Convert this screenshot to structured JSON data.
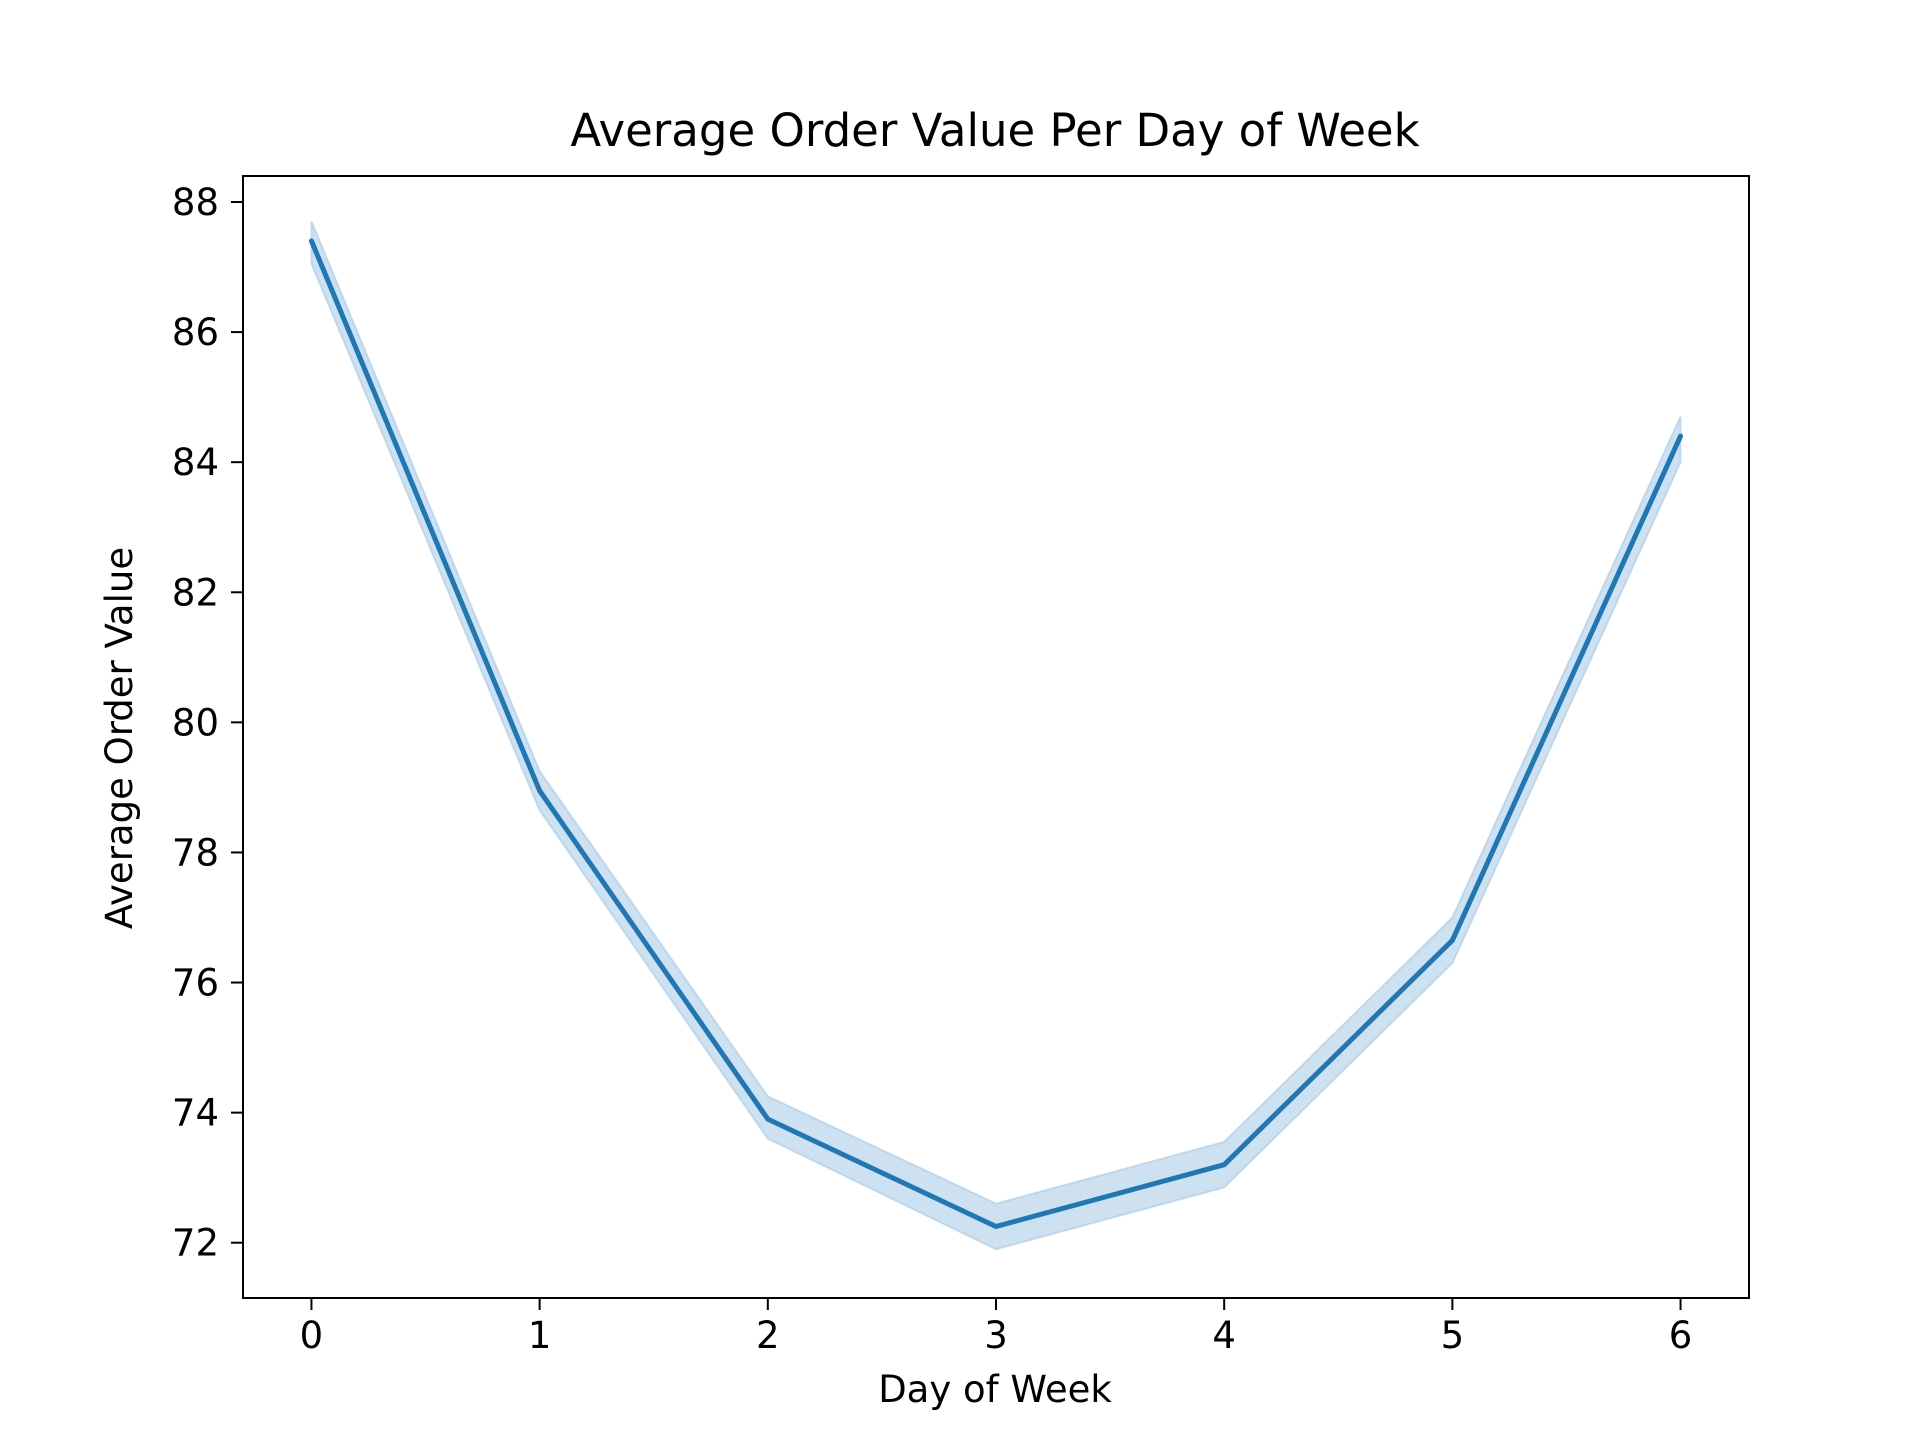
{
  "chart_data": {
    "type": "line",
    "title": "Average Order Value Per Day of Week",
    "xlabel": "Day of Week",
    "ylabel": "Average Order Value",
    "x": [
      0,
      1,
      2,
      3,
      4,
      5,
      6
    ],
    "series": [
      {
        "values": [
          87.4,
          78.95,
          73.9,
          72.25,
          73.2,
          76.65,
          84.4
        ],
        "ci_upper": [
          87.7,
          79.25,
          74.25,
          72.6,
          73.55,
          77.0,
          84.7
        ],
        "ci_lower": [
          87.05,
          78.65,
          73.6,
          71.9,
          72.85,
          76.3,
          84.0
        ],
        "color": "#1f77b4",
        "band_color": "#a6c8e4"
      }
    ],
    "xticks": [
      "0",
      "1",
      "2",
      "3",
      "4",
      "5",
      "6"
    ],
    "yticks": [
      "72",
      "74",
      "76",
      "78",
      "80",
      "82",
      "84",
      "86",
      "88"
    ],
    "xlim": [
      -0.3,
      6.3
    ],
    "ylim": [
      71.15,
      88.4
    ],
    "grid": false,
    "legend": false
  }
}
